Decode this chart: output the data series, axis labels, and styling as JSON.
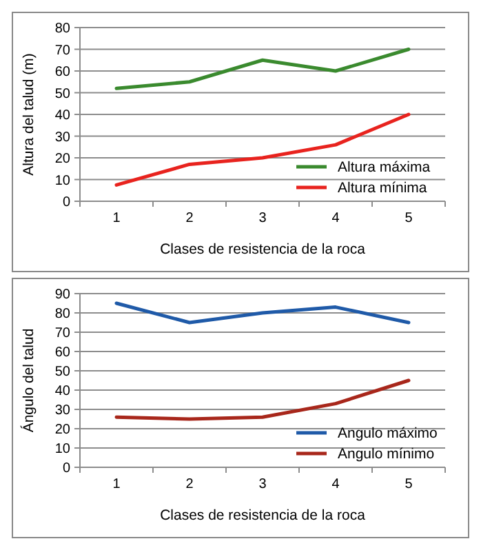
{
  "chart_data": [
    {
      "type": "line",
      "xlabel": "Clases de resistencia de la roca",
      "ylabel": "Altura del talud (m)",
      "categories": [
        "1",
        "2",
        "3",
        "4",
        "5"
      ],
      "series": [
        {
          "name": "Altura máxima",
          "color": "#3a8a2e",
          "values": [
            52,
            55,
            65,
            60,
            70
          ]
        },
        {
          "name": "Altura mínima",
          "color": "#e8231e",
          "values": [
            7.5,
            17,
            20,
            26,
            40
          ]
        }
      ],
      "ylim": [
        0,
        80
      ],
      "yticks": [
        0,
        10,
        20,
        30,
        40,
        50,
        60,
        70,
        80
      ],
      "grid": "y",
      "legend": "bottom right"
    },
    {
      "type": "line",
      "xlabel": "Clases de resistencia de la roca",
      "ylabel": "Ángulo del talud",
      "categories": [
        "1",
        "2",
        "3",
        "4",
        "5"
      ],
      "series": [
        {
          "name": "Angulo máximo",
          "color": "#1f5aa8",
          "values": [
            85,
            75,
            80,
            83,
            75
          ]
        },
        {
          "name": "Angulo mínimo",
          "color": "#a8271b",
          "values": [
            26,
            25,
            26,
            33,
            45
          ]
        }
      ],
      "ylim": [
        0,
        90
      ],
      "yticks": [
        0,
        10,
        20,
        30,
        40,
        50,
        60,
        70,
        80,
        90
      ],
      "grid": "y",
      "legend": "bottom right"
    }
  ]
}
